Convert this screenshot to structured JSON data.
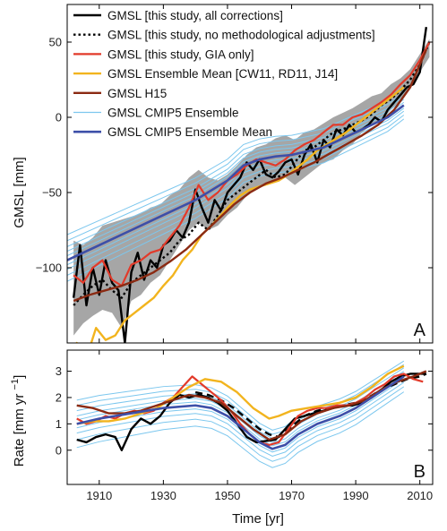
{
  "chart_data": [
    {
      "type": "line",
      "panel_label": "A",
      "ylabel": "GMSL [mm]",
      "xlim": [
        1900,
        2014
      ],
      "ylim": [
        -150,
        75
      ],
      "yticks": [
        -100,
        -50,
        0,
        50
      ],
      "grid": false,
      "legend_position": "top-left",
      "band": {
        "name": "uncertainty",
        "color": "#a6a6a6",
        "x": [
          1902,
          1905,
          1908,
          1911,
          1914,
          1917,
          1920,
          1923,
          1926,
          1929,
          1932,
          1935,
          1938,
          1941,
          1944,
          1947,
          1950,
          1953,
          1956,
          1959,
          1962,
          1965,
          1968,
          1971,
          1974,
          1977,
          1980,
          1983,
          1986,
          1989,
          1992,
          1995,
          1998,
          2001,
          2004,
          2007,
          2010,
          2013
        ],
        "lower": [
          -145,
          -137,
          -132,
          -128,
          -130,
          -140,
          -122,
          -118,
          -110,
          -105,
          -95,
          -85,
          -75,
          -70,
          -75,
          -72,
          -65,
          -60,
          -52,
          -48,
          -45,
          -42,
          -40,
          -45,
          -40,
          -35,
          -30,
          -28,
          -22,
          -18,
          -10,
          -5,
          -2,
          5,
          10,
          20,
          30,
          40
        ],
        "upper": [
          -82,
          -85,
          -80,
          -72,
          -70,
          -68,
          -66,
          -64,
          -60,
          -58,
          -52,
          -48,
          -40,
          -35,
          -40,
          -42,
          -38,
          -32,
          -25,
          -20,
          -18,
          -14,
          -12,
          -15,
          -10,
          -8,
          -4,
          0,
          3,
          6,
          10,
          14,
          16,
          22,
          26,
          32,
          42,
          52
        ]
      },
      "series": [
        {
          "name": "GMSL [this study, all corrections]",
          "color": "#000000",
          "dash": "solid",
          "width": 2.4,
          "x": [
            1902,
            1904,
            1906,
            1908,
            1910,
            1912,
            1914,
            1916,
            1918,
            1920,
            1922,
            1924,
            1926,
            1928,
            1930,
            1932,
            1934,
            1936,
            1938,
            1940,
            1942,
            1944,
            1946,
            1948,
            1950,
            1952,
            1954,
            1956,
            1958,
            1960,
            1962,
            1964,
            1966,
            1968,
            1970,
            1972,
            1974,
            1976,
            1978,
            1980,
            1982,
            1984,
            1986,
            1988,
            1990,
            1992,
            1994,
            1996,
            1998,
            2000,
            2002,
            2004,
            2006,
            2008,
            2010,
            2012
          ],
          "y": [
            -120,
            -85,
            -125,
            -100,
            -118,
            -95,
            -110,
            -115,
            -150,
            -103,
            -90,
            -108,
            -95,
            -100,
            -85,
            -82,
            -75,
            -80,
            -70,
            -48,
            -60,
            -70,
            -55,
            -62,
            -50,
            -45,
            -40,
            -30,
            -35,
            -28,
            -38,
            -40,
            -36,
            -30,
            -28,
            -38,
            -25,
            -18,
            -30,
            -15,
            -20,
            -8,
            -12,
            -5,
            -10,
            -8,
            -5,
            0,
            -3,
            5,
            10,
            15,
            20,
            22,
            30,
            60
          ]
        },
        {
          "name": "GMSL [this study, no methodological adjustments]",
          "color": "#000000",
          "dash": "dotted",
          "width": 2.4,
          "x": [
            1902,
            1905,
            1908,
            1911,
            1914,
            1917,
            1920,
            1923,
            1926,
            1929,
            1932,
            1935,
            1938,
            1941,
            1944,
            1947,
            1950,
            1953,
            1956,
            1959,
            1962,
            1965,
            1968,
            1971,
            1974,
            1977,
            1980,
            1983,
            1986,
            1989,
            1992,
            1995,
            1998,
            2001,
            2004,
            2007,
            2010,
            2013
          ],
          "y": [
            -125,
            -118,
            -112,
            -108,
            -115,
            -120,
            -110,
            -105,
            -100,
            -95,
            -90,
            -82,
            -78,
            -70,
            -75,
            -65,
            -55,
            -50,
            -45,
            -40,
            -35,
            -40,
            -38,
            -30,
            -22,
            -20,
            -15,
            -10,
            -8,
            -5,
            -2,
            2,
            8,
            12,
            18,
            25,
            35,
            50
          ]
        },
        {
          "name": "GMSL [this study, GIA only]",
          "color": "#e23a2a",
          "dash": "solid",
          "width": 2.2,
          "x": [
            1902,
            1905,
            1908,
            1911,
            1914,
            1917,
            1920,
            1923,
            1926,
            1929,
            1932,
            1935,
            1938,
            1941,
            1944,
            1947,
            1950,
            1953,
            1956,
            1959,
            1962,
            1965,
            1968,
            1971,
            1974,
            1977,
            1980,
            1983,
            1986,
            1989,
            1992,
            1995,
            1998,
            2001,
            2004,
            2007,
            2010,
            2013
          ],
          "y": [
            -105,
            -110,
            -100,
            -95,
            -108,
            -112,
            -98,
            -95,
            -90,
            -88,
            -80,
            -72,
            -60,
            -45,
            -55,
            -50,
            -42,
            -38,
            -32,
            -28,
            -30,
            -32,
            -28,
            -22,
            -18,
            -15,
            -10,
            -5,
            -5,
            0,
            2,
            6,
            10,
            15,
            22,
            28,
            38,
            50
          ]
        },
        {
          "name": "GMSL Ensemble Mean [CW11, RD11, J14]",
          "color": "#f2b41e",
          "dash": "solid",
          "width": 2.4,
          "x": [
            1900,
            1903,
            1906,
            1909,
            1912,
            1915,
            1918,
            1921,
            1924,
            1927,
            1930,
            1933,
            1936,
            1939,
            1942,
            1945,
            1948,
            1951,
            1954,
            1957,
            1960,
            1963,
            1966,
            1969,
            1972,
            1975,
            1978,
            1981,
            1984,
            1987,
            1990,
            1993,
            1996,
            1999,
            2002,
            2005
          ],
          "y": [
            -170,
            -150,
            -160,
            -140,
            -148,
            -145,
            -135,
            -130,
            -125,
            -120,
            -112,
            -105,
            -95,
            -88,
            -78,
            -72,
            -65,
            -58,
            -52,
            -48,
            -46,
            -44,
            -42,
            -38,
            -33,
            -28,
            -22,
            -18,
            -14,
            -10,
            -5,
            0,
            5,
            10,
            15,
            20
          ]
        },
        {
          "name": "GMSL H15",
          "color": "#8b2a12",
          "dash": "solid",
          "width": 2.4,
          "x": [
            1902,
            1907,
            1912,
            1917,
            1922,
            1927,
            1932,
            1937,
            1942,
            1947,
            1952,
            1957,
            1962,
            1967,
            1972,
            1977,
            1982,
            1987,
            1992,
            1997,
            2002,
            2007,
            2012
          ],
          "y": [
            -122,
            -118,
            -115,
            -112,
            -108,
            -103,
            -96,
            -88,
            -78,
            -68,
            -58,
            -50,
            -44,
            -40,
            -35,
            -30,
            -24,
            -18,
            -12,
            -5,
            5,
            20,
            45
          ]
        },
        {
          "name": "GMSL CMIP5 Ensemble Mean",
          "color": "#3d4fa8",
          "dash": "solid",
          "width": 2.6,
          "x": [
            1900,
            1910,
            1920,
            1930,
            1940,
            1950,
            1955,
            1960,
            1965,
            1970,
            1980,
            1990,
            2000,
            2005
          ],
          "y": [
            -95,
            -85,
            -75,
            -65,
            -55,
            -42,
            -32,
            -28,
            -26,
            -25,
            -20,
            -10,
            0,
            8
          ]
        }
      ],
      "ensemble": {
        "name": "GMSL CMIP5 Ensemble",
        "color": "#7cc7ee",
        "x": [
          1900,
          1910,
          1920,
          1930,
          1940,
          1950,
          1955,
          1960,
          1965,
          1970,
          1980,
          1990,
          2000,
          2005
        ],
        "offsets": [
          -14,
          -10,
          -6,
          -3,
          0,
          3,
          6,
          9,
          13,
          17
        ]
      },
      "annotations": [
        "A"
      ]
    },
    {
      "type": "line",
      "panel_label": "B",
      "ylabel": "Rate [mm yr ",
      "ylabel_sup": "−1",
      "ylabel_close": "]",
      "xlabel": "Time [yr]",
      "xlim": [
        1900,
        2014
      ],
      "ylim": [
        -1.3,
        3.8
      ],
      "yticks": [
        0,
        1,
        2,
        3
      ],
      "xticks": [
        1910,
        1930,
        1950,
        1970,
        1990,
        2010
      ],
      "grid": false,
      "series": [
        {
          "name": "GMSL [this study, all corrections]",
          "color": "#000000",
          "dash": "solid",
          "width": 2.4,
          "x": [
            1903,
            1906,
            1909,
            1912,
            1915,
            1917,
            1920,
            1923,
            1926,
            1929,
            1932,
            1935,
            1938,
            1941,
            1944,
            1947,
            1950,
            1953,
            1956,
            1959,
            1962,
            1965,
            1968,
            1971,
            1974,
            1977,
            1980,
            1983,
            1986,
            1989,
            1992,
            1995,
            1998,
            2001,
            2004,
            2007,
            2010,
            2012
          ],
          "y": [
            0.4,
            0.3,
            0.5,
            0.6,
            0.5,
            0.0,
            0.8,
            1.2,
            1.0,
            1.3,
            1.8,
            2.1,
            2.0,
            2.1,
            2.0,
            1.8,
            1.5,
            1.0,
            0.5,
            0.3,
            0.35,
            0.4,
            0.8,
            1.2,
            1.3,
            1.4,
            1.5,
            1.6,
            1.7,
            1.7,
            1.8,
            2.0,
            2.3,
            2.6,
            2.8,
            2.9,
            2.9,
            2.9
          ]
        },
        {
          "name": "GMSL [this study, no methodological adjustments]",
          "color": "#000000",
          "dash": "dashed",
          "width": 2.4,
          "x": [
            1940,
            1944,
            1948,
            1952,
            1956,
            1960,
            1963,
            1966,
            1970,
            1974,
            1978,
            1982,
            1986,
            1990,
            1994,
            1998,
            2002,
            2006,
            2010,
            2012
          ],
          "y": [
            2.2,
            2.1,
            1.9,
            1.6,
            1.2,
            0.8,
            0.6,
            0.5,
            0.9,
            1.3,
            1.5,
            1.6,
            1.7,
            1.8,
            2.0,
            2.3,
            2.5,
            2.7,
            2.8,
            2.9
          ]
        },
        {
          "name": "GMSL [this study, GIA only]",
          "color": "#e23a2a",
          "dash": "solid",
          "width": 2.2,
          "x": [
            1903,
            1906,
            1909,
            1912,
            1915,
            1918,
            1921,
            1924,
            1927,
            1930,
            1933,
            1936,
            1939,
            1942,
            1945,
            1948,
            1951,
            1954,
            1957,
            1960,
            1963,
            1966,
            1969,
            1972,
            1975,
            1978,
            1981,
            1984,
            1987,
            1990,
            1993,
            1996,
            1999,
            2002,
            2005,
            2008,
            2011
          ],
          "y": [
            1.2,
            1.0,
            1.1,
            1.3,
            1.2,
            1.4,
            1.5,
            1.4,
            1.5,
            1.8,
            2.0,
            2.4,
            2.8,
            2.5,
            2.2,
            1.9,
            1.5,
            1.0,
            0.6,
            0.3,
            0.2,
            0.3,
            0.8,
            1.3,
            1.5,
            1.6,
            1.6,
            1.7,
            1.7,
            1.8,
            2.0,
            2.3,
            2.5,
            2.8,
            2.9,
            2.7,
            2.6
          ]
        },
        {
          "name": "GMSL Ensemble Mean [CW11, RD11, J14]",
          "color": "#f2b41e",
          "dash": "solid",
          "width": 2.4,
          "x": [
            1903,
            1908,
            1913,
            1918,
            1923,
            1928,
            1933,
            1938,
            1943,
            1948,
            1953,
            1958,
            1963,
            1966,
            1970,
            1975,
            1980,
            1985,
            1990,
            1995,
            2000,
            2005
          ],
          "y": [
            1.0,
            1.1,
            1.1,
            1.2,
            1.4,
            1.6,
            2.0,
            2.4,
            2.7,
            2.6,
            2.2,
            1.6,
            1.2,
            1.3,
            1.5,
            1.6,
            1.7,
            1.8,
            2.0,
            2.4,
            2.9,
            3.2
          ]
        },
        {
          "name": "GMSL H15",
          "color": "#8b2a12",
          "dash": "solid",
          "width": 2.4,
          "x": [
            1903,
            1908,
            1913,
            1918,
            1923,
            1928,
            1933,
            1938,
            1943,
            1948,
            1953,
            1958,
            1963,
            1968,
            1973,
            1978,
            1983,
            1988,
            1993,
            1998,
            2003,
            2008,
            2012
          ],
          "y": [
            1.7,
            1.6,
            1.4,
            1.4,
            1.5,
            1.7,
            1.9,
            2.1,
            2.0,
            1.8,
            1.3,
            0.8,
            0.4,
            0.6,
            1.1,
            1.4,
            1.6,
            1.7,
            1.9,
            2.3,
            2.6,
            2.8,
            3.0
          ]
        },
        {
          "name": "GMSL CMIP5 Ensemble Mean",
          "color": "#3d4fa8",
          "dash": "solid",
          "width": 2.6,
          "x": [
            1903,
            1910,
            1920,
            1930,
            1940,
            1945,
            1950,
            1955,
            1960,
            1964,
            1968,
            1972,
            1978,
            1985,
            1990,
            1995,
            2000,
            2005
          ],
          "y": [
            1.0,
            1.2,
            1.4,
            1.6,
            1.7,
            1.6,
            1.3,
            0.8,
            0.3,
            0.05,
            0.2,
            0.6,
            1.0,
            1.3,
            1.6,
            2.0,
            2.4,
            2.8
          ]
        }
      ],
      "ensemble": {
        "name": "GMSL CMIP5 Ensemble",
        "color": "#7cc7ee",
        "x": [
          1903,
          1910,
          1920,
          1930,
          1940,
          1945,
          1950,
          1955,
          1960,
          1964,
          1968,
          1972,
          1978,
          1985,
          1990,
          1995,
          2000,
          2005
        ],
        "offsets": [
          -0.9,
          -0.6,
          -0.35,
          -0.15,
          0.0,
          0.15,
          0.3,
          0.5,
          0.7,
          0.9
        ]
      },
      "annotations": [
        "B"
      ]
    }
  ]
}
